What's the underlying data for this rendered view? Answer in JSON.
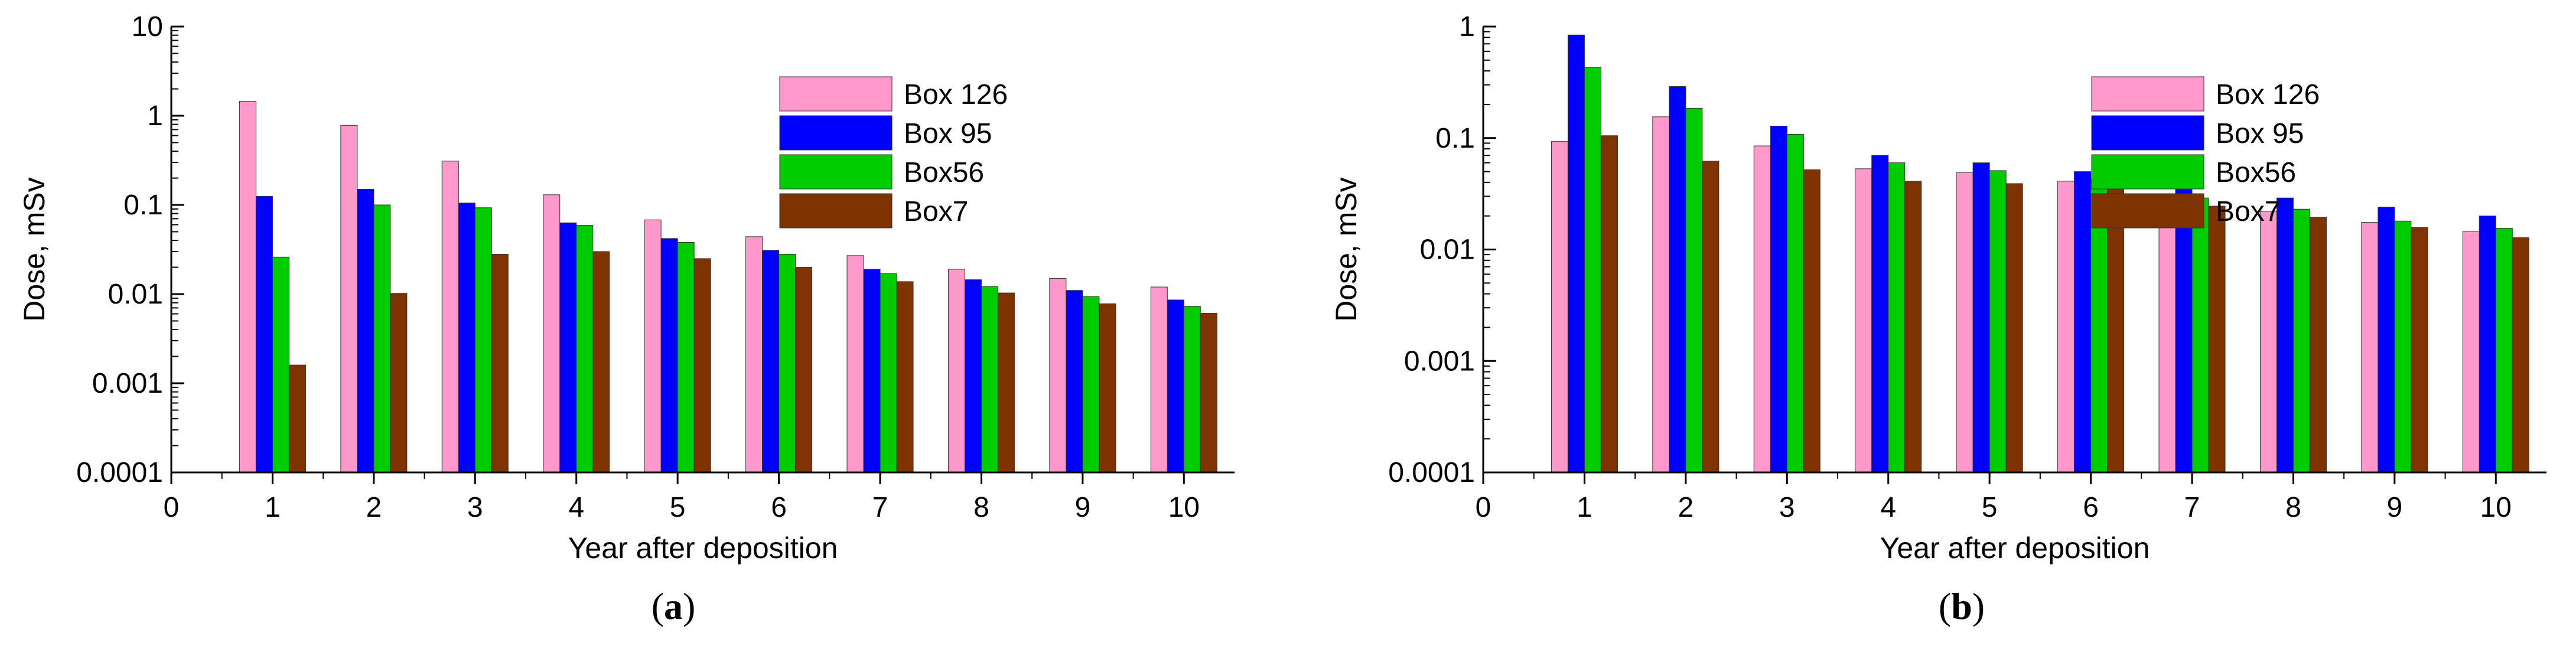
{
  "colors": {
    "Box 126": "#ff99cc",
    "Box 95": "#0000ff",
    "Box56": "#00cc00",
    "Box7": "#7f3300"
  },
  "chart_data": [
    {
      "type": "bar",
      "panel_label": "a",
      "xlabel": "Year after deposition",
      "ylabel": "Dose, mSv",
      "yscale": "log",
      "ylim": [
        0.0001,
        10
      ],
      "xlim": [
        0,
        10.5
      ],
      "x_ticks": [
        "0",
        "1",
        "2",
        "3",
        "4",
        "5",
        "6",
        "7",
        "8",
        "9",
        "10"
      ],
      "y_ticks": [
        "0.0001",
        "0.001",
        "0.01",
        "0.1",
        "1",
        "10"
      ],
      "categories": [
        1,
        2,
        3,
        4,
        5,
        6,
        7,
        8,
        9,
        10
      ],
      "legend_position": "top-right",
      "series": [
        {
          "name": "Box 126",
          "values": [
            1.45,
            0.78,
            0.31,
            0.13,
            0.068,
            0.044,
            0.027,
            0.019,
            0.015,
            0.012
          ]
        },
        {
          "name": "Box 95",
          "values": [
            0.125,
            0.15,
            0.105,
            0.063,
            0.042,
            0.031,
            0.019,
            0.0145,
            0.011,
            0.0086
          ]
        },
        {
          "name": "Box56",
          "values": [
            0.026,
            0.1,
            0.093,
            0.059,
            0.038,
            0.028,
            0.017,
            0.0122,
            0.0094,
            0.0073
          ]
        },
        {
          "name": "Box7",
          "values": [
            0.0016,
            0.0102,
            0.028,
            0.03,
            0.025,
            0.02,
            0.0138,
            0.0103,
            0.0078,
            0.0061
          ]
        }
      ]
    },
    {
      "type": "bar",
      "panel_label": "b",
      "xlabel": "Year after deposition",
      "ylabel": "Dose, mSv",
      "yscale": "log",
      "ylim": [
        0.0001,
        1
      ],
      "xlim": [
        0,
        10.5
      ],
      "x_ticks": [
        "0",
        "1",
        "2",
        "3",
        "4",
        "5",
        "6",
        "7",
        "8",
        "9",
        "10"
      ],
      "y_ticks": [
        "0.0001",
        "0.001",
        "0.01",
        "0.1",
        "1"
      ],
      "categories": [
        1,
        2,
        3,
        4,
        5,
        6,
        7,
        8,
        9,
        10
      ],
      "legend_position": "top-right",
      "series": [
        {
          "name": "Box 126",
          "values": [
            0.093,
            0.155,
            0.085,
            0.053,
            0.049,
            0.041,
            0.028,
            0.022,
            0.0175,
            0.0145
          ]
        },
        {
          "name": "Box 95",
          "values": [
            0.84,
            0.29,
            0.128,
            0.07,
            0.06,
            0.05,
            0.035,
            0.029,
            0.024,
            0.02
          ]
        },
        {
          "name": "Box56",
          "values": [
            0.43,
            0.185,
            0.108,
            0.06,
            0.051,
            0.043,
            0.029,
            0.023,
            0.018,
            0.0155
          ]
        },
        {
          "name": "Box7",
          "values": [
            0.105,
            0.062,
            0.052,
            0.041,
            0.039,
            0.035,
            0.0245,
            0.0195,
            0.0158,
            0.0128
          ]
        }
      ]
    }
  ]
}
